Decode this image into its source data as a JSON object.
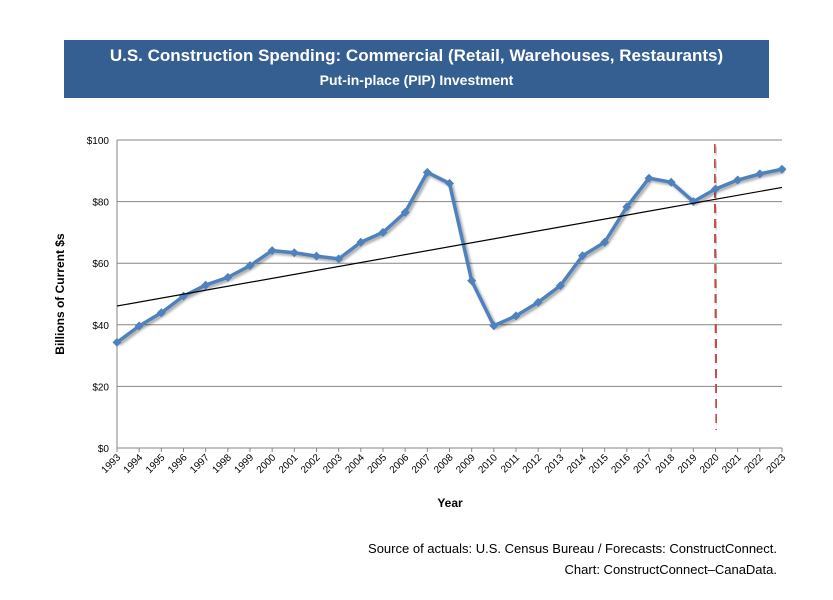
{
  "chart_data": {
    "type": "line",
    "title": "U.S. Construction Spending: Commercial (Retail, Warehouses, Restaurants)",
    "subtitle": "Put-in-place (PIP) Investment",
    "xlabel": "Year",
    "ylabel": "Billions of Current $s",
    "ylim": [
      0,
      100
    ],
    "yticks": [
      "$0",
      "$20",
      "$40",
      "$60",
      "$80",
      "$100"
    ],
    "ytick_values": [
      0,
      20,
      40,
      60,
      80,
      100
    ],
    "grid": true,
    "x": [
      1993,
      1994,
      1995,
      1996,
      1997,
      1998,
      1999,
      2000,
      2001,
      2002,
      2003,
      2004,
      2005,
      2006,
      2007,
      2008,
      2009,
      2010,
      2011,
      2012,
      2013,
      2014,
      2015,
      2016,
      2017,
      2018,
      2019,
      2020,
      2021,
      2022,
      2023
    ],
    "series": [
      {
        "values": [
          34.3,
          39.6,
          43.9,
          49.3,
          52.9,
          55.4,
          59.2,
          64.1,
          63.4,
          62.3,
          61.4,
          66.8,
          70.0,
          76.5,
          89.5,
          85.9,
          54.3,
          39.7,
          42.9,
          47.3,
          52.7,
          62.4,
          66.8,
          78.3,
          87.6,
          86.3,
          80.0,
          84.1,
          87.0,
          89.0,
          90.5
        ],
        "color": "#4f81bd",
        "marker": "diamond"
      }
    ],
    "trendline": {
      "type": "linear",
      "start": [
        1993,
        46.1
      ],
      "end": [
        2023,
        84.6
      ],
      "color": "#000000"
    },
    "forecast_divider": {
      "x": 2020,
      "style": "dashed",
      "color": "#c0504d"
    }
  },
  "footer": {
    "source": "Source of actuals: U.S. Census Bureau / Forecasts: ConstructConnect.",
    "credit": "Chart: ConstructConnect–CanaData."
  }
}
